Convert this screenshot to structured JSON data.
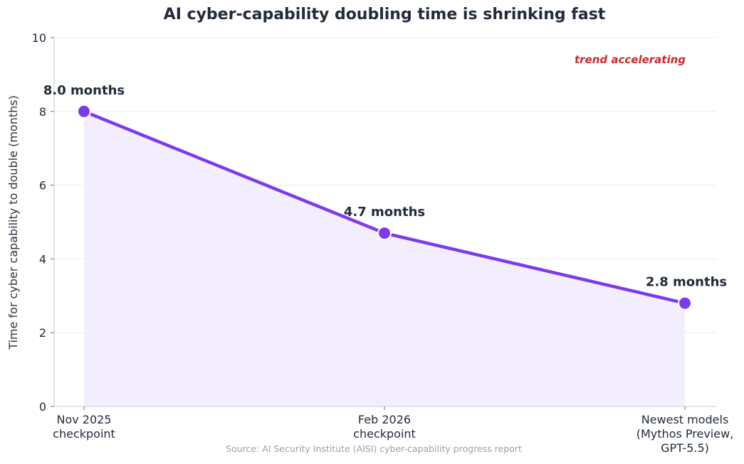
{
  "chart_data": {
    "type": "line",
    "title": "AI cyber-capability doubling time is shrinking fast",
    "ylabel": "Time for cyber capability to double (months)",
    "xlabel": "",
    "ylim": [
      0,
      10
    ],
    "yticks": [
      0,
      2,
      4,
      6,
      8,
      10
    ],
    "grid": true,
    "categories": [
      [
        "Nov 2025",
        "checkpoint"
      ],
      [
        "Feb 2026",
        "checkpoint"
      ],
      [
        "Newest models",
        "(Mythos Preview,",
        "GPT-5.5)"
      ]
    ],
    "values": [
      8.0,
      4.7,
      2.8
    ],
    "data_labels": [
      "8.0 months",
      "4.7 months",
      "2.8 months"
    ],
    "annotation": "trend accelerating",
    "source": "Source: AI Security Institute (AISI) cyber-capability progress report",
    "colors": {
      "line": "#7c3aed",
      "fill": "#f3eefd",
      "marker_edge": "#ffffff",
      "annotation": "#cc2b2b"
    }
  }
}
